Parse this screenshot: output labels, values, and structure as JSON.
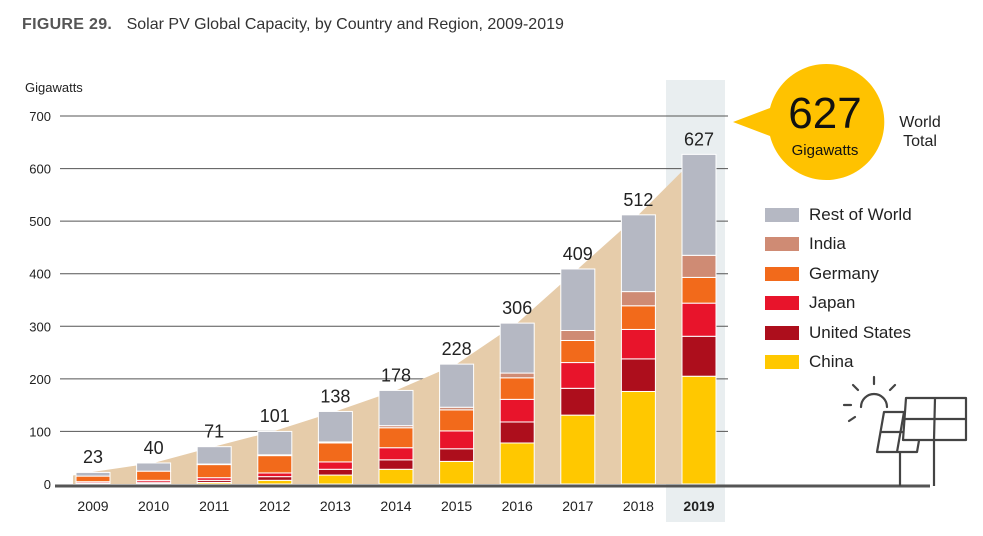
{
  "header": {
    "figure_label": "FIGURE 29.",
    "title": "Solar PV Global Capacity, by Country and Region, 2009-2019"
  },
  "chart_data": {
    "type": "bar",
    "stacked": true,
    "ylabel": "Gigawatts",
    "ylim": [
      0,
      700
    ],
    "yticks": [
      0,
      100,
      200,
      300,
      400,
      500,
      600,
      700
    ],
    "grid": true,
    "legend_position": "right",
    "categories": [
      "2009",
      "2010",
      "2011",
      "2012",
      "2013",
      "2014",
      "2015",
      "2016",
      "2017",
      "2018",
      "2019"
    ],
    "highlight_category": "2019",
    "totals": [
      23,
      40,
      71,
      101,
      138,
      178,
      228,
      306,
      409,
      512,
      627
    ],
    "series": [
      {
        "name": "China",
        "color": "#FFC800",
        "values": [
          0.3,
          0.9,
          3,
          7,
          17,
          28,
          43,
          78,
          131,
          176,
          205
        ]
      },
      {
        "name": "United States",
        "color": "#AD0E1C",
        "values": [
          1.5,
          2.5,
          4,
          7,
          11,
          18,
          24,
          40,
          51,
          62,
          76
        ]
      },
      {
        "name": "Japan",
        "color": "#E8142B",
        "values": [
          2.6,
          3.6,
          5,
          7,
          14,
          23,
          34,
          43,
          49,
          56,
          63
        ]
      },
      {
        "name": "Germany",
        "color": "#F26A1B",
        "values": [
          10.6,
          17.4,
          25,
          33,
          36,
          38,
          40,
          41,
          42,
          45,
          49
        ]
      },
      {
        "name": "India",
        "color": "#CF8B74",
        "values": [
          0,
          0,
          1,
          1.5,
          2,
          4,
          5,
          9,
          19,
          27,
          42
        ]
      },
      {
        "name": "Rest of World",
        "color": "#B5B8C3",
        "values": [
          7,
          15.6,
          33,
          44.5,
          58,
          67,
          82,
          95,
          117,
          146,
          192
        ]
      }
    ]
  },
  "callout": {
    "value": "627",
    "unit": "Gigawatts",
    "label": "World Total",
    "color": "#FFC200"
  },
  "colors": {
    "area_fill": "#E6CCAA",
    "highlight_band": "#E9EEF0",
    "grid": "#555555",
    "baseline": "#555555"
  },
  "icons": [
    "sun-icon",
    "solar-panel-icon"
  ]
}
